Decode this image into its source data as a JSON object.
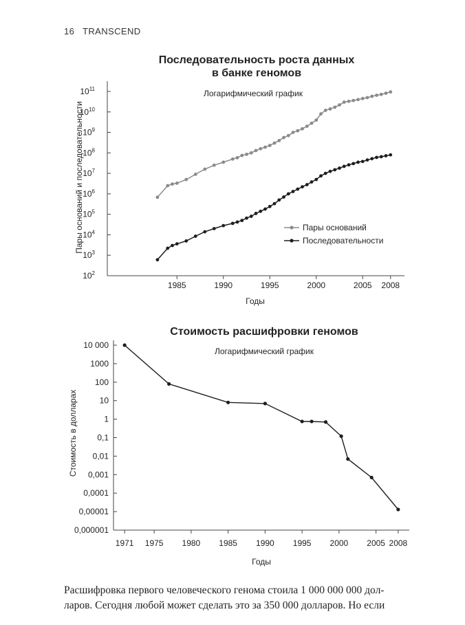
{
  "header": {
    "page_number": "16",
    "book_title": "TRANSCEND"
  },
  "chart_data": [
    {
      "type": "line",
      "scale": "log",
      "title_lines": [
        "Последовательность роста данных",
        "в банке геномов"
      ],
      "note": "Логарифмический график",
      "xlabel": "Годы",
      "ylabel": "Пары оснований и последовательности",
      "xlim": [
        1977.5,
        2009.5
      ],
      "xticks": [
        1985,
        1990,
        1995,
        2000,
        2005,
        2008
      ],
      "ylim_exponent": [
        2,
        11
      ],
      "ytick_exponents": [
        2,
        3,
        4,
        5,
        6,
        7,
        8,
        9,
        10,
        11
      ],
      "ytick_base": "10",
      "legend": [
        "Пары оснований",
        "Последовательности"
      ],
      "series": [
        {
          "name": "Пары оснований",
          "color": "#8a8a8a",
          "x": [
            1982.9,
            1984,
            1984.5,
            1985,
            1986,
            1987,
            1988,
            1989,
            1990,
            1991,
            1991.5,
            1992,
            1992.5,
            1993,
            1993.5,
            1994,
            1994.5,
            1995,
            1995.5,
            1996,
            1996.5,
            1997,
            1997.5,
            1998,
            1998.5,
            1999,
            1999.5,
            2000,
            2000.5,
            2001,
            2001.5,
            2002,
            2002.5,
            2003,
            2003.5,
            2004,
            2004.5,
            2005,
            2005.5,
            2006,
            2006.5,
            2007,
            2007.5,
            2008
          ],
          "y": [
            680000,
            2500000,
            3000000,
            3300000,
            5000000,
            9000000,
            16000000,
            25000000,
            35000000,
            50000000,
            58000000,
            75000000,
            85000000,
            100000000,
            130000000,
            160000000,
            190000000,
            230000000,
            300000000,
            400000000,
            560000000,
            700000000,
            1000000000,
            1200000000,
            1500000000,
            2000000000,
            2800000000,
            4000000000,
            8000000000,
            12000000000,
            14000000000,
            17000000000,
            22000000000,
            30000000000,
            33000000000,
            36000000000,
            40000000000,
            45000000000,
            50000000000,
            58000000000,
            65000000000,
            72000000000,
            82000000000,
            95000000000
          ]
        },
        {
          "name": "Последовательности",
          "color": "#1e1e1e",
          "x": [
            1982.9,
            1984,
            1984.5,
            1985,
            1986,
            1987,
            1988,
            1989,
            1990,
            1991,
            1991.5,
            1992,
            1992.5,
            1993,
            1993.5,
            1994,
            1994.5,
            1995,
            1995.5,
            1996,
            1996.5,
            1997,
            1997.5,
            1998,
            1998.5,
            1999,
            1999.5,
            2000,
            2000.5,
            2001,
            2001.5,
            2002,
            2002.5,
            2003,
            2003.5,
            2004,
            2004.5,
            2005,
            2005.5,
            2006,
            2006.5,
            2007,
            2007.5,
            2008
          ],
          "y": [
            600,
            2200,
            3000,
            3600,
            5000,
            8500,
            14000,
            20000,
            28000,
            36000,
            42000,
            50000,
            65000,
            80000,
            110000,
            140000,
            180000,
            240000,
            330000,
            500000,
            700000,
            1000000,
            1300000,
            1700000,
            2200000,
            2800000,
            3800000,
            5000000,
            7500000,
            10000000,
            12500000,
            15000000,
            18000000,
            22000000,
            26000000,
            30000000,
            35000000,
            38000000,
            45000000,
            52000000,
            60000000,
            65000000,
            72000000,
            80000000
          ]
        }
      ]
    },
    {
      "type": "line",
      "scale": "log",
      "title": "Стоимость расшифровки геномов",
      "note": "Логарифмический график",
      "xlabel": "Годы",
      "ylabel": "Стоимость в долларах",
      "xlim": [
        1969.5,
        2009.5
      ],
      "xticks": [
        1971,
        1975,
        1980,
        1985,
        1990,
        1995,
        2000,
        2005,
        2008
      ],
      "ylim_exponent": [
        -6,
        4
      ],
      "yticks": [
        {
          "label": "10 000",
          "exp": 4
        },
        {
          "label": "1000",
          "exp": 3
        },
        {
          "label": "100",
          "exp": 2
        },
        {
          "label": "10",
          "exp": 1
        },
        {
          "label": "1",
          "exp": 0
        },
        {
          "label": "0,1",
          "exp": -1
        },
        {
          "label": "0,01",
          "exp": -2
        },
        {
          "label": "0,001",
          "exp": -3
        },
        {
          "label": "0,0001",
          "exp": -4
        },
        {
          "label": "0,00001",
          "exp": -5
        },
        {
          "label": "0,000001",
          "exp": -6
        }
      ],
      "series": [
        {
          "name": "Стоимость",
          "color": "#1e1e1e",
          "x": [
            1971,
            1977,
            1985,
            1990,
            1995,
            1996.3,
            1998.2,
            2000.3,
            2001.2,
            2004.4,
            2008
          ],
          "y": [
            10000,
            80,
            8,
            7,
            0.75,
            0.75,
            0.7,
            0.12,
            0.007,
            0.0007,
            1.3e-05
          ]
        }
      ]
    }
  ],
  "footer_lines": [
    "Расшифровка первого человеческого генома стоила 1 000 000 000 дол-",
    "ларов. Сегодня любой может сделать это за 350 000 долларов. Но если"
  ]
}
